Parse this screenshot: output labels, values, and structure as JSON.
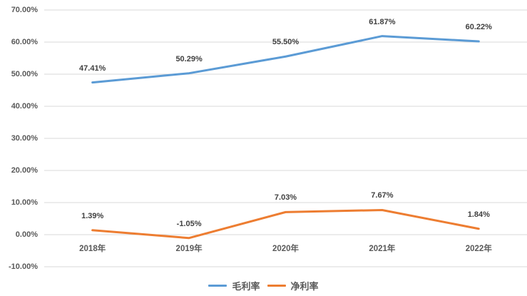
{
  "chart_data": {
    "type": "line",
    "title": "",
    "xlabel": "",
    "ylabel": "",
    "categories": [
      "2018年",
      "2019年",
      "2020年",
      "2021年",
      "2022年"
    ],
    "series": [
      {
        "name": "毛利率",
        "values": [
          47.41,
          50.29,
          55.5,
          61.87,
          60.22
        ],
        "labels": [
          "47.41%",
          "50.29%",
          "55.50%",
          "61.87%",
          "60.22%"
        ],
        "color": "#5B9BD5"
      },
      {
        "name": "净利率",
        "values": [
          1.39,
          -1.05,
          7.03,
          7.67,
          1.84
        ],
        "labels": [
          "1.39%",
          "-1.05%",
          "7.03%",
          "7.67%",
          "1.84%"
        ],
        "color": "#ED7D31"
      }
    ],
    "y_axis": {
      "min": -10,
      "max": 70,
      "step": 10,
      "tick_labels": [
        "70.00%",
        "60.00%",
        "50.00%",
        "40.00%",
        "30.00%",
        "20.00%",
        "10.00%",
        "0.00%",
        "-10.00%"
      ]
    },
    "grid": true,
    "legend_position": "bottom"
  },
  "style": {
    "background": "#FFFFFF",
    "gridline_color": "#D9D9D9",
    "axis_label_color": "#595959",
    "data_label_color": "#404040"
  }
}
